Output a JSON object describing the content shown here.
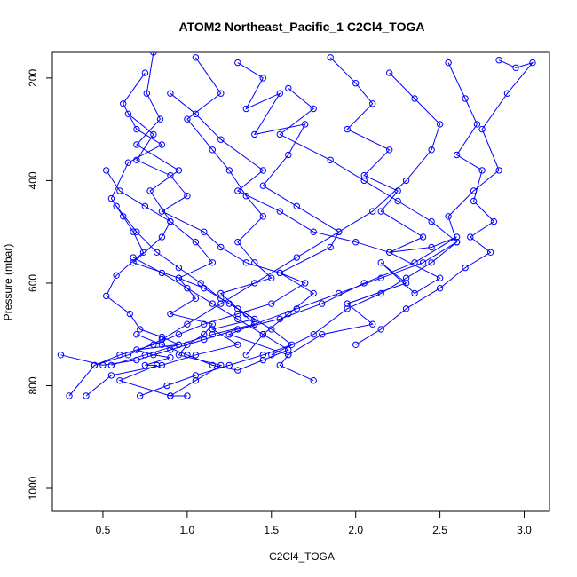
{
  "chart_data": {
    "type": "line",
    "title": "ATOM2 Northeast_Pacific_1 C2Cl4_TOGA",
    "xlabel": "C2Cl4_TOGA",
    "ylabel": "Pressure (mbar)",
    "xlim": [
      0.2,
      3.15
    ],
    "ylim": [
      1045,
      150
    ],
    "y_reversed": true,
    "x_ticks": [
      0.5,
      1.0,
      1.5,
      2.0,
      2.5,
      3.0
    ],
    "x_tick_labels": [
      "0.5",
      "1.0",
      "1.5",
      "2.0",
      "2.5",
      "3.0"
    ],
    "y_ticks": [
      200,
      400,
      600,
      800,
      1000
    ],
    "y_tick_labels": [
      "200",
      "400",
      "600",
      "800",
      "1000"
    ],
    "grid": false,
    "line_color": "#0000ff",
    "marker": "open-circle",
    "series": [
      {
        "x": [
          0.75,
          0.62,
          0.7,
          0.85,
          0.65,
          0.55,
          0.62,
          0.68,
          0.74,
          0.58,
          0.52,
          0.66,
          0.72,
          0.85,
          0.95,
          0.7,
          0.8,
          0.9,
          0.75,
          0.82,
          0.6,
          0.9,
          1.0
        ],
        "y": [
          190,
          250,
          300,
          330,
          365,
          435,
          470,
          500,
          540,
          585,
          625,
          660,
          690,
          705,
          720,
          730,
          740,
          745,
          760,
          760,
          790,
          820,
          820
        ]
      },
      {
        "x": [
          0.8,
          0.76,
          0.84,
          0.7,
          0.95,
          0.78,
          0.9,
          0.85,
          0.68,
          0.95,
          1.05,
          0.9,
          1.15,
          1.1,
          1.0,
          0.95,
          1.2,
          1.05,
          0.9
        ],
        "y": [
          150,
          230,
          280,
          330,
          380,
          420,
          480,
          510,
          560,
          590,
          630,
          660,
          680,
          700,
          720,
          740,
          760,
          790,
          820
        ]
      },
      {
        "x": [
          1.05,
          1.2,
          1.0,
          1.15,
          1.25,
          1.35,
          1.45,
          1.3,
          1.4,
          1.5,
          1.2,
          1.3,
          1.4,
          1.25,
          1.6,
          1.55,
          1.75
        ],
        "y": [
          160,
          230,
          280,
          340,
          380,
          430,
          470,
          520,
          560,
          590,
          620,
          650,
          680,
          700,
          740,
          760,
          790
        ]
      },
      {
        "x": [
          1.3,
          1.45,
          1.35,
          1.55,
          1.4,
          1.7,
          1.6,
          1.45,
          1.65,
          1.9,
          1.85,
          1.55,
          1.75,
          1.6,
          1.45,
          1.35
        ],
        "y": [
          170,
          200,
          260,
          230,
          310,
          290,
          350,
          410,
          450,
          500,
          530,
          580,
          620,
          660,
          700,
          740
        ]
      },
      {
        "x": [
          1.85,
          2.0,
          2.1,
          1.95,
          2.2,
          2.05,
          2.25,
          2.15,
          2.4,
          2.2,
          2.5,
          2.35,
          2.15,
          2.3,
          1.95,
          2.1,
          1.8,
          1.6
        ],
        "y": [
          160,
          210,
          250,
          300,
          340,
          390,
          420,
          460,
          510,
          540,
          590,
          620,
          560,
          600,
          640,
          680,
          700,
          740
        ]
      },
      {
        "x": [
          2.55,
          2.65,
          2.72,
          2.6,
          2.75,
          2.7,
          2.82,
          2.68,
          2.8,
          2.65,
          2.5,
          2.3,
          2.15,
          2.0
        ],
        "y": [
          170,
          240,
          290,
          350,
          380,
          440,
          480,
          510,
          540,
          570,
          610,
          650,
          690,
          720
        ]
      },
      {
        "x": [
          2.85,
          2.95,
          3.05,
          2.9,
          2.75,
          2.85,
          2.7,
          2.55,
          2.6,
          2.45,
          2.3,
          2.15,
          1.95,
          1.75,
          1.5
        ],
        "y": [
          165,
          180,
          170,
          230,
          300,
          380,
          420,
          470,
          520,
          560,
          590,
          620,
          650,
          700,
          740
        ]
      },
      {
        "x": [
          0.52,
          0.6,
          0.75,
          0.9,
          1.05,
          1.15,
          0.95,
          1.1,
          1.25,
          1.4,
          1.15,
          1.3,
          1.05,
          0.85,
          0.55,
          0.4
        ],
        "y": [
          380,
          420,
          450,
          480,
          520,
          560,
          590,
          610,
          640,
          670,
          690,
          720,
          740,
          760,
          780,
          820
        ]
      },
      {
        "x": [
          0.65,
          0.8,
          0.7,
          0.9,
          1.0,
          0.85,
          1.1,
          1.2,
          1.35,
          1.55,
          1.7,
          1.5,
          1.3,
          1.1,
          0.95,
          0.8,
          0.6,
          0.45,
          0.3
        ],
        "y": [
          270,
          310,
          360,
          390,
          430,
          460,
          500,
          530,
          560,
          580,
          600,
          640,
          660,
          680,
          700,
          720,
          740,
          760,
          820
        ]
      },
      {
        "x": [
          0.9,
          1.05,
          1.2,
          1.45,
          1.3,
          1.55,
          1.75,
          2.0,
          2.2,
          2.45,
          2.6,
          2.35,
          2.05,
          1.8,
          1.55,
          1.3,
          1.1,
          0.9,
          0.7,
          0.5,
          0.25
        ],
        "y": [
          230,
          270,
          320,
          380,
          420,
          460,
          500,
          520,
          540,
          530,
          510,
          560,
          600,
          640,
          670,
          690,
          710,
          730,
          750,
          760,
          740
        ]
      },
      {
        "x": [
          1.6,
          1.75,
          1.55,
          1.85,
          2.05,
          2.25,
          2.45,
          2.6,
          2.4,
          2.15,
          1.9,
          1.65,
          1.4,
          1.15,
          0.95,
          0.75,
          0.55
        ],
        "y": [
          220,
          260,
          310,
          360,
          400,
          440,
          480,
          520,
          560,
          590,
          620,
          650,
          680,
          700,
          720,
          740,
          760
        ]
      },
      {
        "x": [
          2.2,
          2.35,
          2.5,
          2.45,
          2.3,
          2.1,
          1.9,
          1.65,
          1.4,
          1.2,
          1.0,
          0.85,
          0.65,
          0.45
        ],
        "y": [
          190,
          240,
          290,
          340,
          400,
          460,
          500,
          550,
          600,
          640,
          680,
          710,
          740,
          760
        ]
      },
      {
        "x": [
          0.58,
          0.7,
          0.82,
          0.95,
          1.08,
          1.2,
          1.35,
          1.5,
          1.62,
          1.45,
          1.25,
          1.05,
          0.88,
          0.72
        ],
        "y": [
          450,
          500,
          540,
          570,
          600,
          630,
          660,
          690,
          720,
          740,
          760,
          780,
          800,
          820
        ]
      },
      {
        "x": [
          0.68,
          0.85,
          1.0,
          1.15,
          1.3,
          1.45,
          1.6,
          1.45,
          1.3,
          1.15,
          1.0,
          0.85,
          0.7
        ],
        "y": [
          550,
          580,
          610,
          640,
          670,
          700,
          730,
          750,
          770,
          760,
          740,
          720,
          700
        ]
      }
    ]
  }
}
